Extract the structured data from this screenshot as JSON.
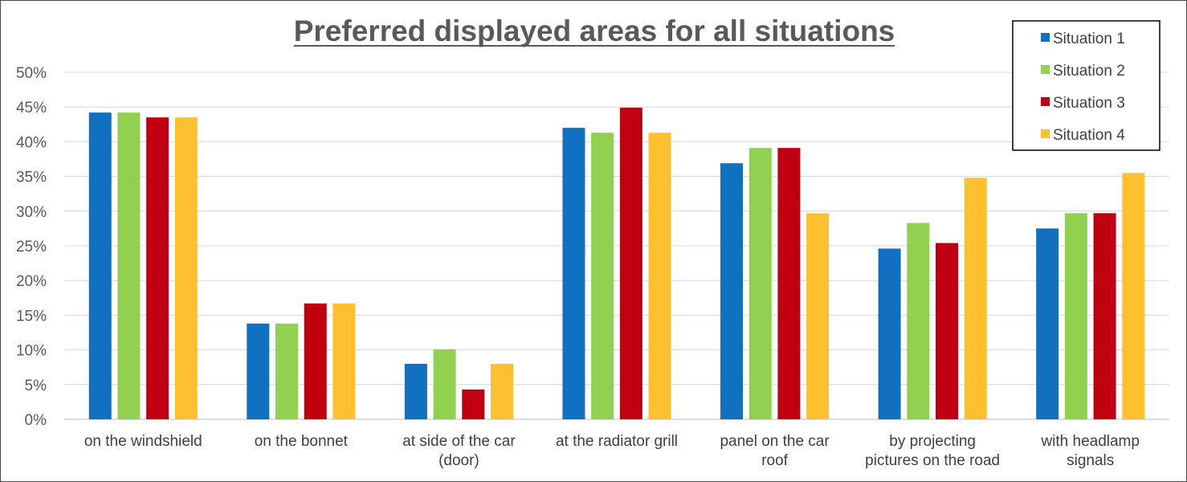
{
  "chart_data": {
    "type": "bar",
    "title": "Preferred displayed areas for all situations",
    "categories": [
      [
        "on the windshield"
      ],
      [
        "on the bonnet"
      ],
      [
        "at side of the car",
        "(door)"
      ],
      [
        "at the radiator grill"
      ],
      [
        "panel on the car",
        "roof"
      ],
      [
        "by projecting",
        "pictures on the road"
      ],
      [
        "with headlamp",
        "signals"
      ]
    ],
    "series": [
      {
        "name": "Situation 1",
        "color": "#1170C0",
        "values": [
          44.2,
          13.8,
          8.0,
          42.0,
          36.9,
          24.6,
          27.5
        ]
      },
      {
        "name": "Situation 2",
        "color": "#92D050",
        "values": [
          44.2,
          13.8,
          10.1,
          41.3,
          39.1,
          28.3,
          29.7
        ]
      },
      {
        "name": "Situation 3",
        "color": "#C00010",
        "values": [
          43.5,
          16.7,
          4.3,
          44.9,
          39.1,
          25.4,
          29.7
        ]
      },
      {
        "name": "Situation 4",
        "color": "#FFC030",
        "values": [
          43.5,
          16.7,
          8.0,
          41.3,
          29.7,
          34.8,
          35.5
        ]
      }
    ],
    "yticks": [
      "0%",
      "5%",
      "10%",
      "15%",
      "20%",
      "25%",
      "30%",
      "35%",
      "40%",
      "45%",
      "50%"
    ],
    "ylim": [
      0,
      50
    ],
    "ylabel": "",
    "xlabel": "",
    "grid": true,
    "legend_position": "top-right"
  }
}
